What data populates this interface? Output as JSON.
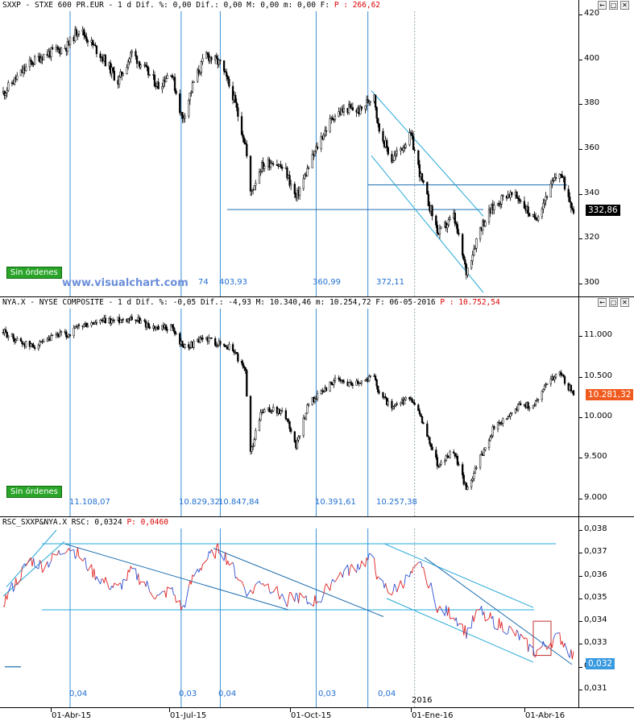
{
  "panes": [
    {
      "id": "sxxp",
      "header_text": "SXXP - STXE 600 PR.EUR -  1 d Dif.  %: 0,00 Dif.: 0,00 M: 0,00 m: 0,00 F: ",
      "header_p": "P : 266,62",
      "order_button": "Sin órdenes",
      "watermark": "www.visualchart.com",
      "last_price": "332,86",
      "marker_labels": [
        "74",
        "403,93",
        "360,99",
        "372,11"
      ]
    },
    {
      "id": "nya",
      "header_text": "NYA.X - NYSE COMPOSITE -  1 d Dif.  %: -0,05 Dif.: -4,93 M: 10.340,46 m: 10.254,72 F: 06-05-2016 ",
      "header_p": "P : 10.752,54",
      "order_button": "Sin órdenes",
      "last_price": "10.281,32",
      "marker_labels": [
        "11.108,07",
        "10.829,32",
        "10.847,84",
        "10.391,61",
        "10.257,38"
      ]
    },
    {
      "id": "rsc",
      "header_text": "RSC_SXXP&NYA.X RSC: 0,0324 ",
      "header_p": "P: 0,0460",
      "last_price": "0,032",
      "marker_labels": [
        "0,04",
        "0,03",
        "0,04",
        "0,03",
        "0,04"
      ]
    }
  ],
  "window_buttons": [
    "←",
    "□",
    "✕"
  ],
  "year_marker": "2016",
  "date_axis": [
    "01-Abr-15",
    "01-Jul-15",
    "01-Oct-15",
    "01-Ene-16",
    "01-Abr-16"
  ],
  "colors": {
    "candle": "#000000",
    "vertical_lines": "#3a8fd8",
    "trend_lines": "#23a8d8",
    "horizontal_lines": "#1f6fb0",
    "rsc_line_red": "#e02020",
    "rsc_line_blue": "#3050d0",
    "header_red": "#e00000",
    "button_green": "#2aa52a",
    "last_price_rsc_bg": "#3a9ae0"
  },
  "chart_data": [
    {
      "type": "candlestick",
      "title": "SXXP - STXE 600 PR.EUR",
      "ylim": [
        295,
        422
      ],
      "y_ticks": [
        300,
        320,
        340,
        360,
        380,
        400,
        420
      ],
      "x_range": [
        "2015-02-09",
        "2016-05-06"
      ],
      "close_series": [
        [
          "2015-02-09",
          385
        ],
        [
          "2015-02-20",
          392
        ],
        [
          "2015-03-02",
          398
        ],
        [
          "2015-03-13",
          402
        ],
        [
          "2015-03-24",
          404
        ],
        [
          "2015-04-01",
          406
        ],
        [
          "2015-04-10",
          414
        ],
        [
          "2015-04-20",
          407
        ],
        [
          "2015-04-30",
          400
        ],
        [
          "2015-05-11",
          390
        ],
        [
          "2015-05-22",
          403
        ],
        [
          "2015-06-02",
          395
        ],
        [
          "2015-06-12",
          388
        ],
        [
          "2015-06-22",
          395
        ],
        [
          "2015-07-01",
          373
        ],
        [
          "2015-07-10",
          390
        ],
        [
          "2015-07-20",
          402
        ],
        [
          "2015-07-31",
          398
        ],
        [
          "2015-08-10",
          384
        ],
        [
          "2015-08-20",
          362
        ],
        [
          "2015-08-24",
          340
        ],
        [
          "2015-09-01",
          352
        ],
        [
          "2015-09-11",
          355
        ],
        [
          "2015-09-21",
          350
        ],
        [
          "2015-09-29",
          338
        ],
        [
          "2015-10-09",
          352
        ],
        [
          "2015-10-19",
          365
        ],
        [
          "2015-10-29",
          375
        ],
        [
          "2015-11-09",
          378
        ],
        [
          "2015-11-19",
          377
        ],
        [
          "2015-11-30",
          385
        ],
        [
          "2015-12-03",
          370
        ],
        [
          "2015-12-14",
          355
        ],
        [
          "2015-12-29",
          366
        ],
        [
          "2016-01-07",
          345
        ],
        [
          "2016-01-20",
          322
        ],
        [
          "2016-02-01",
          330
        ],
        [
          "2016-02-11",
          305
        ],
        [
          "2016-02-22",
          325
        ],
        [
          "2016-03-03",
          334
        ],
        [
          "2016-03-14",
          340
        ],
        [
          "2016-03-24",
          338
        ],
        [
          "2016-04-05",
          328
        ],
        [
          "2016-04-15",
          340
        ],
        [
          "2016-04-25",
          350
        ],
        [
          "2016-05-06",
          332.86
        ]
      ],
      "horizontal_lines": [
        333,
        344
      ],
      "marker_values": [
        "74",
        "403,93",
        "360,99",
        "372,11"
      ]
    },
    {
      "type": "candlestick",
      "title": "NYA.X - NYSE COMPOSITE",
      "ylim": [
        8850,
        11300
      ],
      "y_ticks": [
        "9.000",
        "9.500",
        "10.000",
        "10.500",
        "11.000"
      ],
      "x_range": [
        "2015-02-09",
        "2016-05-06"
      ],
      "close_series": [
        [
          "2015-02-09",
          11050
        ],
        [
          "2015-02-20",
          10950
        ],
        [
          "2015-03-02",
          10880
        ],
        [
          "2015-03-13",
          10900
        ],
        [
          "2015-03-24",
          11020
        ],
        [
          "2015-04-01",
          11010
        ],
        [
          "2015-04-10",
          11120
        ],
        [
          "2015-04-20",
          11150
        ],
        [
          "2015-04-30",
          11180
        ],
        [
          "2015-05-11",
          11200
        ],
        [
          "2015-05-22",
          11230
        ],
        [
          "2015-06-02",
          11150
        ],
        [
          "2015-06-12",
          11080
        ],
        [
          "2015-06-22",
          11120
        ],
        [
          "2015-07-01",
          10880
        ],
        [
          "2015-07-10",
          10900
        ],
        [
          "2015-07-20",
          10980
        ],
        [
          "2015-07-31",
          10900
        ],
        [
          "2015-08-10",
          10850
        ],
        [
          "2015-08-20",
          10550
        ],
        [
          "2015-08-24",
          9550
        ],
        [
          "2015-09-01",
          10050
        ],
        [
          "2015-09-11",
          10100
        ],
        [
          "2015-09-21",
          10020
        ],
        [
          "2015-09-29",
          9650
        ],
        [
          "2015-10-09",
          10180
        ],
        [
          "2015-10-19",
          10300
        ],
        [
          "2015-10-29",
          10450
        ],
        [
          "2015-11-09",
          10420
        ],
        [
          "2015-11-19",
          10450
        ],
        [
          "2015-11-30",
          10500
        ],
        [
          "2015-12-03",
          10350
        ],
        [
          "2015-12-14",
          10100
        ],
        [
          "2015-12-29",
          10250
        ],
        [
          "2016-01-07",
          9950
        ],
        [
          "2016-01-20",
          9400
        ],
        [
          "2016-02-01",
          9600
        ],
        [
          "2016-02-11",
          9100
        ],
        [
          "2016-02-22",
          9500
        ],
        [
          "2016-03-03",
          9850
        ],
        [
          "2016-03-14",
          10000
        ],
        [
          "2016-03-24",
          10150
        ],
        [
          "2016-04-05",
          10150
        ],
        [
          "2016-04-15",
          10450
        ],
        [
          "2016-04-25",
          10550
        ],
        [
          "2016-05-06",
          10281.32
        ]
      ],
      "marker_values": [
        "11.108,07",
        "10.829,32",
        "10.847,84",
        "10.391,61",
        "10.257,38"
      ]
    },
    {
      "type": "line",
      "title": "RSC_SXXP&NYA.X",
      "ylim": [
        0.0305,
        0.0383
      ],
      "y_ticks": [
        "0,031",
        "0,032",
        "0,033",
        "0,034",
        "0,035",
        "0,036",
        "0,037",
        "0,038"
      ],
      "x_range": [
        "2015-02-09",
        "2016-05-06"
      ],
      "series": [
        {
          "values": [
            [
              "2015-02-09",
              0.0348
            ],
            [
              "2015-02-20",
              0.0358
            ],
            [
              "2015-03-02",
              0.0367
            ],
            [
              "2015-03-13",
              0.0364
            ],
            [
              "2015-03-24",
              0.0369
            ],
            [
              "2015-04-01",
              0.0373
            ],
            [
              "2015-04-10",
              0.0369
            ],
            [
              "2015-04-20",
              0.0362
            ],
            [
              "2015-04-30",
              0.0357
            ],
            [
              "2015-05-11",
              0.0354
            ],
            [
              "2015-05-22",
              0.0362
            ],
            [
              "2015-06-02",
              0.0356
            ],
            [
              "2015-06-12",
              0.035
            ],
            [
              "2015-06-22",
              0.0354
            ],
            [
              "2015-07-01",
              0.0345
            ],
            [
              "2015-07-10",
              0.036
            ],
            [
              "2015-07-20",
              0.0367
            ],
            [
              "2015-07-31",
              0.0372
            ],
            [
              "2015-08-10",
              0.0363
            ],
            [
              "2015-08-20",
              0.0354
            ],
            [
              "2015-08-24",
              0.0352
            ],
            [
              "2015-09-01",
              0.0358
            ],
            [
              "2015-09-11",
              0.0354
            ],
            [
              "2015-09-21",
              0.0349
            ],
            [
              "2015-09-29",
              0.0351
            ],
            [
              "2015-10-09",
              0.0348
            ],
            [
              "2015-10-19",
              0.035
            ],
            [
              "2015-10-29",
              0.0359
            ],
            [
              "2015-11-09",
              0.0362
            ],
            [
              "2015-11-19",
              0.0365
            ],
            [
              "2015-11-30",
              0.0368
            ],
            [
              "2015-12-03",
              0.0357
            ],
            [
              "2015-12-14",
              0.0353
            ],
            [
              "2015-12-29",
              0.036
            ],
            [
              "2016-01-07",
              0.0365
            ],
            [
              "2016-01-20",
              0.0345
            ],
            [
              "2016-02-01",
              0.0343
            ],
            [
              "2016-02-11",
              0.0335
            ],
            [
              "2016-02-22",
              0.0345
            ],
            [
              "2016-03-03",
              0.034
            ],
            [
              "2016-03-14",
              0.0337
            ],
            [
              "2016-03-24",
              0.0333
            ],
            [
              "2016-04-05",
              0.0326
            ],
            [
              "2016-04-15",
              0.033
            ],
            [
              "2016-04-25",
              0.0333
            ],
            [
              "2016-05-06",
              0.0324
            ]
          ]
        }
      ],
      "horizontal_lines": [
        0.0345,
        0.0374
      ],
      "marker_values": [
        "0,04",
        "0,03",
        "0,04",
        "0,03",
        "0,04"
      ]
    }
  ]
}
